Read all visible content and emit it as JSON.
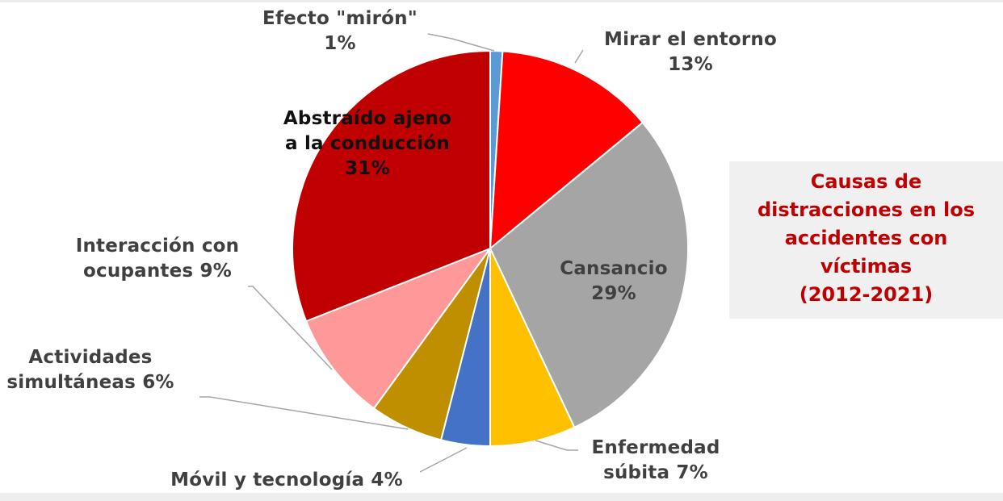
{
  "chart_data": {
    "type": "pie",
    "title": "Causas de distracciones en los accidentes con víctimas (2012-2021)",
    "title_lines": [
      "Causas de",
      "distracciones en los",
      "accidentes con",
      "víctimas",
      "(2012-2021)"
    ],
    "start_angle_deg": 0,
    "direction": "clockwise",
    "slices": [
      {
        "label": "Efecto \"mirón\"",
        "value": 1,
        "color": "#5b9bd5"
      },
      {
        "label": "Mirar el entorno",
        "value": 13,
        "color": "#ff0000"
      },
      {
        "label": "Cansancio",
        "value": 29,
        "color": "#a5a5a5"
      },
      {
        "label": "Enfermedad súbita",
        "value": 7,
        "color": "#ffc000"
      },
      {
        "label": "Móvil y tecnología",
        "value": 4,
        "color": "#4472c4"
      },
      {
        "label": "Actividades simultáneas",
        "value": 6,
        "color": "#bf8f00"
      },
      {
        "label": "Interacción con ocupantes",
        "value": 9,
        "color": "#ff9999"
      },
      {
        "label": "Abstraído ajeno a la conducción",
        "value": 31,
        "color": "#c00000"
      }
    ],
    "unit": "%",
    "legend": "none (data labels)"
  },
  "labels": {
    "miron": [
      "Efecto \"mirón\"",
      "1%"
    ],
    "entorno": [
      "Mirar el entorno",
      "13%"
    ],
    "cansancio": [
      "Cansancio",
      "29%"
    ],
    "enfermedad": [
      "Enfermedad",
      "súbita 7%"
    ],
    "movil": [
      "Móvil y tecnología 4%"
    ],
    "actividades": [
      "Actividades",
      "simultáneas 6%"
    ],
    "interaccion": [
      "Interacción con",
      "ocupantes 9%"
    ],
    "abstraido": [
      "Abstraído ajeno",
      "a la conducción",
      "31%"
    ]
  },
  "title_color": "#c00000",
  "title_bg": "#f0f0f0"
}
